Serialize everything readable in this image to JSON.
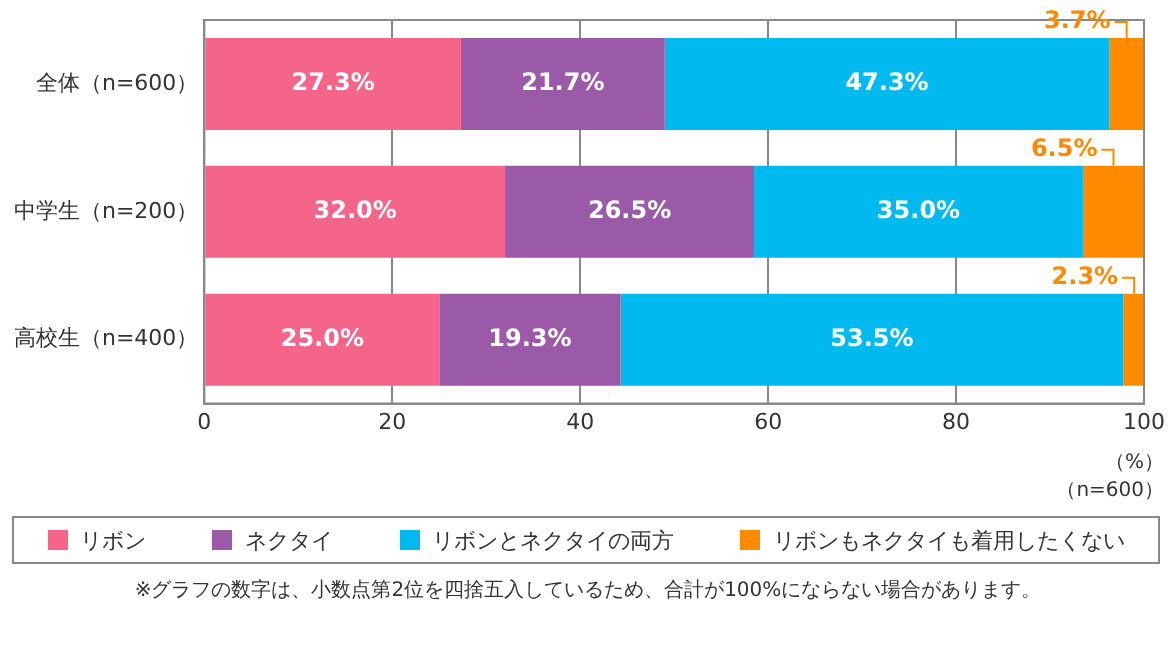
{
  "chart_data": {
    "type": "bar",
    "orientation": "horizontal",
    "stacked": true,
    "categories": [
      "全体（n=600）",
      "中学生（n=200）",
      "高校生（n=400）"
    ],
    "series": [
      {
        "name": "リボン",
        "color": "#f5658a",
        "values": [
          27.3,
          32.0,
          25.0
        ],
        "value_labels": [
          "27.3%",
          "32.0%",
          "25.0%"
        ]
      },
      {
        "name": "ネクタイ",
        "color": "#9b5aa8",
        "values": [
          21.7,
          26.5,
          19.3
        ],
        "value_labels": [
          "21.7%",
          "26.5%",
          "19.3%"
        ]
      },
      {
        "name": "リボンとネクタイの両方",
        "color": "#00b9ef",
        "values": [
          47.3,
          35.0,
          53.5
        ],
        "value_labels": [
          "47.3%",
          "35.0%",
          "53.5%"
        ]
      },
      {
        "name": "リボンもネクタイも着用したくない",
        "color": "#ff8a00",
        "values": [
          3.7,
          6.5,
          2.3
        ],
        "value_labels": [
          "3.7%",
          "6.5%",
          "2.3%"
        ]
      }
    ],
    "xlim": [
      0,
      100
    ],
    "xticks": [
      0,
      20,
      40,
      60,
      80,
      100
    ],
    "grid": "x",
    "legend": "bottom",
    "annotations": [
      "（%）",
      "（n=600）",
      "※グラフの数字は、小数点第2位を四捨五入しているため、合計が100%にならない場合があります。"
    ]
  }
}
